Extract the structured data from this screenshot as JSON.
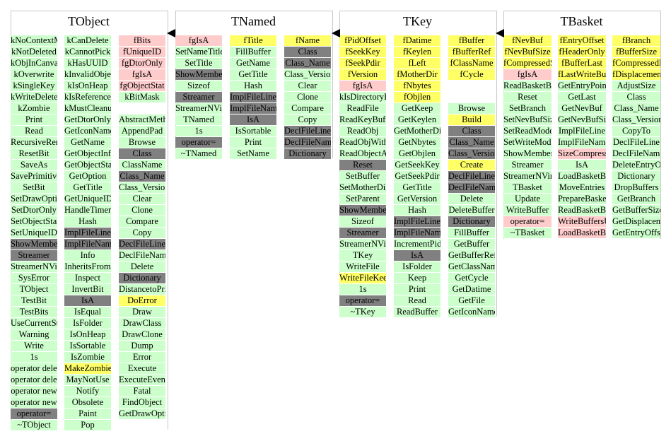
{
  "colors": {
    "g": "#ccffcc",
    "p": "#ffcccc",
    "y": "#ffff66",
    "d": "#808080"
  },
  "classes": [
    {
      "title": "TObject",
      "columns": [
        [
          [
            "kNoContextMenu",
            "g"
          ],
          [
            "kNotDeleted",
            "g"
          ],
          [
            "kObjInCanvas",
            "g"
          ],
          [
            "kOverwrite",
            "g"
          ],
          [
            "kSingleKey",
            "g"
          ],
          [
            "kWriteDelete",
            "g"
          ],
          [
            "kZombie",
            "g"
          ],
          [
            "Print",
            "g"
          ],
          [
            "Read",
            "g"
          ],
          [
            "RecursiveRemove",
            "g"
          ],
          [
            "ResetBit",
            "g"
          ],
          [
            "SaveAs",
            "g"
          ],
          [
            "SavePrimitive",
            "g"
          ],
          [
            "SetBit",
            "g"
          ],
          [
            "SetDrawOption",
            "g"
          ],
          [
            "SetDtorOnly",
            "g"
          ],
          [
            "SetObjectStat",
            "g"
          ],
          [
            "SetUniqueID",
            "g"
          ],
          [
            "ShowMembers",
            "d"
          ],
          [
            "Streamer",
            "d"
          ],
          [
            "StreamerNVirtual",
            "g"
          ],
          [
            "SysError",
            "g"
          ],
          [
            "TObject",
            "g"
          ],
          [
            "TestBit",
            "g"
          ],
          [
            "TestBits",
            "g"
          ],
          [
            "UseCurrentStyle",
            "g"
          ],
          [
            "Warning",
            "g"
          ],
          [
            "Write",
            "g"
          ],
          [
            "1s",
            "g"
          ],
          [
            "operator delete",
            "g"
          ],
          [
            "operator delete[]",
            "g"
          ],
          [
            "operator new",
            "g"
          ],
          [
            "operator new[]",
            "g"
          ],
          [
            "operator=",
            "d"
          ],
          [
            "~TObject",
            "g"
          ]
        ],
        [
          [
            "kCanDelete",
            "g"
          ],
          [
            "kCannotPick",
            "g"
          ],
          [
            "kHasUUID",
            "g"
          ],
          [
            "kInvalidObject",
            "g"
          ],
          [
            "kIsOnHeap",
            "g"
          ],
          [
            "kIsReferenced",
            "g"
          ],
          [
            "kMustCleanup",
            "g"
          ],
          [
            "GetDtorOnly",
            "g"
          ],
          [
            "GetIconName",
            "g"
          ],
          [
            "GetName",
            "g"
          ],
          [
            "GetObjectInfo",
            "g"
          ],
          [
            "GetObjectStat",
            "g"
          ],
          [
            "GetOption",
            "g"
          ],
          [
            "GetTitle",
            "g"
          ],
          [
            "GetUniqueID",
            "g"
          ],
          [
            "HandleTimer",
            "g"
          ],
          [
            "Hash",
            "g"
          ],
          [
            "ImplFileLine",
            "d"
          ],
          [
            "ImplFileName",
            "d"
          ],
          [
            "Info",
            "g"
          ],
          [
            "InheritsFrom",
            "g"
          ],
          [
            "Inspect",
            "g"
          ],
          [
            "InvertBit",
            "g"
          ],
          [
            "IsA",
            "d"
          ],
          [
            "IsEqual",
            "g"
          ],
          [
            "IsFolder",
            "g"
          ],
          [
            "IsOnHeap",
            "g"
          ],
          [
            "IsSortable",
            "g"
          ],
          [
            "IsZombie",
            "g"
          ],
          [
            "MakeZombie",
            "y"
          ],
          [
            "MayNotUse",
            "g"
          ],
          [
            "Notify",
            "g"
          ],
          [
            "Obsolete",
            "g"
          ],
          [
            "Paint",
            "g"
          ],
          [
            "Pop",
            "g"
          ]
        ],
        [
          [
            "fBits",
            "p"
          ],
          [
            "fUniqueID",
            "p"
          ],
          [
            "fgDtorOnly",
            "p"
          ],
          [
            "fgIsA",
            "p"
          ],
          [
            "fgObjectStat",
            "p"
          ],
          [
            "kBitMask",
            "g"
          ],
          [
            "",
            ""
          ],
          [
            "AbstractMethod",
            "g"
          ],
          [
            "AppendPad",
            "g"
          ],
          [
            "Browse",
            "g"
          ],
          [
            "Class",
            "d"
          ],
          [
            "ClassName",
            "g"
          ],
          [
            "Class_Name",
            "d"
          ],
          [
            "Class_Version",
            "g"
          ],
          [
            "Clear",
            "g"
          ],
          [
            "Clone",
            "g"
          ],
          [
            "Compare",
            "g"
          ],
          [
            "Copy",
            "g"
          ],
          [
            "DeclFileLine",
            "d"
          ],
          [
            "DeclFileName",
            "g"
          ],
          [
            "Delete",
            "g"
          ],
          [
            "Dictionary",
            "d"
          ],
          [
            "DistancetoPrimitive",
            "g"
          ],
          [
            "DoError",
            "y"
          ],
          [
            "Draw",
            "g"
          ],
          [
            "DrawClass",
            "g"
          ],
          [
            "DrawClone",
            "g"
          ],
          [
            "Dump",
            "g"
          ],
          [
            "Error",
            "g"
          ],
          [
            "Execute",
            "g"
          ],
          [
            "ExecuteEvent",
            "g"
          ],
          [
            "Fatal",
            "g"
          ],
          [
            "FindObject",
            "g"
          ],
          [
            "GetDrawOption",
            "g"
          ]
        ]
      ]
    },
    {
      "title": "TNamed",
      "columns": [
        [
          [
            "fgIsA",
            "p"
          ],
          [
            "SetNameTitle",
            "g"
          ],
          [
            "SetTitle",
            "g"
          ],
          [
            "ShowMembers",
            "d"
          ],
          [
            "Sizeof",
            "g"
          ],
          [
            "Streamer",
            "d"
          ],
          [
            "StreamerNVirtual",
            "g"
          ],
          [
            "TNamed",
            "g"
          ],
          [
            "1s",
            "g"
          ],
          [
            "operator=",
            "d"
          ],
          [
            "~TNamed",
            "g"
          ]
        ],
        [
          [
            "fTitle",
            "y"
          ],
          [
            "FillBuffer",
            "g"
          ],
          [
            "GetName",
            "g"
          ],
          [
            "GetTitle",
            "g"
          ],
          [
            "Hash",
            "g"
          ],
          [
            "ImplFileLine",
            "d"
          ],
          [
            "ImplFileName",
            "d"
          ],
          [
            "IsA",
            "d"
          ],
          [
            "IsSortable",
            "g"
          ],
          [
            "Print",
            "g"
          ],
          [
            "SetName",
            "g"
          ]
        ],
        [
          [
            "fName",
            "y"
          ],
          [
            "Class",
            "d"
          ],
          [
            "Class_Name",
            "d"
          ],
          [
            "Class_Version",
            "g"
          ],
          [
            "Clear",
            "g"
          ],
          [
            "Clone",
            "g"
          ],
          [
            "Compare",
            "g"
          ],
          [
            "Copy",
            "g"
          ],
          [
            "DeclFileLine",
            "d"
          ],
          [
            "DeclFileName",
            "d"
          ],
          [
            "Dictionary",
            "d"
          ]
        ]
      ]
    },
    {
      "title": "TKey",
      "columns": [
        [
          [
            "fPidOffset",
            "y"
          ],
          [
            "fSeekKey",
            "y"
          ],
          [
            "fSeekPdir",
            "y"
          ],
          [
            "fVersion",
            "y"
          ],
          [
            "fgIsA",
            "p"
          ],
          [
            "kIsDirectoryFile",
            "g"
          ],
          [
            "ReadFile",
            "g"
          ],
          [
            "ReadKeyBuffer",
            "g"
          ],
          [
            "ReadObj",
            "g"
          ],
          [
            "ReadObjWithBuffer",
            "g"
          ],
          [
            "ReadObjectAny",
            "g"
          ],
          [
            "Reset",
            "d"
          ],
          [
            "SetBuffer",
            "g"
          ],
          [
            "SetMotherDir",
            "g"
          ],
          [
            "SetParent",
            "g"
          ],
          [
            "ShowMembers",
            "d"
          ],
          [
            "Sizeof",
            "g"
          ],
          [
            "Streamer",
            "d"
          ],
          [
            "StreamerNVirtual",
            "g"
          ],
          [
            "TKey",
            "g"
          ],
          [
            "WriteFile",
            "g"
          ],
          [
            "WriteFileKeepBuffer",
            "y"
          ],
          [
            "1s",
            "g"
          ],
          [
            "operator=",
            "d"
          ],
          [
            "~TKey",
            "g"
          ]
        ],
        [
          [
            "fDatime",
            "y"
          ],
          [
            "fKeylen",
            "y"
          ],
          [
            "fLeft",
            "y"
          ],
          [
            "fMotherDir",
            "y"
          ],
          [
            "fNbytes",
            "y"
          ],
          [
            "fObjlen",
            "y"
          ],
          [
            "GetKeep",
            "g"
          ],
          [
            "GetKeylen",
            "g"
          ],
          [
            "GetMotherDir",
            "g"
          ],
          [
            "GetNbytes",
            "g"
          ],
          [
            "GetObjlen",
            "g"
          ],
          [
            "GetSeekKey",
            "g"
          ],
          [
            "GetSeekPdir",
            "g"
          ],
          [
            "GetTitle",
            "g"
          ],
          [
            "GetVersion",
            "g"
          ],
          [
            "Hash",
            "g"
          ],
          [
            "ImplFileLine",
            "d"
          ],
          [
            "ImplFileName",
            "d"
          ],
          [
            "IncrementPidOffset",
            "g"
          ],
          [
            "IsA",
            "d"
          ],
          [
            "IsFolder",
            "g"
          ],
          [
            "Keep",
            "g"
          ],
          [
            "Print",
            "g"
          ],
          [
            "Read",
            "g"
          ],
          [
            "ReadBuffer",
            "g"
          ]
        ],
        [
          [
            "fBuffer",
            "y"
          ],
          [
            "fBufferRef",
            "y"
          ],
          [
            "fClassName",
            "y"
          ],
          [
            "fCycle",
            "y"
          ],
          [
            "",
            ""
          ],
          [
            "",
            ""
          ],
          [
            "Browse",
            "g"
          ],
          [
            "Build",
            "y"
          ],
          [
            "Class",
            "d"
          ],
          [
            "Class_Name",
            "d"
          ],
          [
            "Class_Version",
            "d"
          ],
          [
            "Create",
            "y"
          ],
          [
            "DeclFileLine",
            "d"
          ],
          [
            "DeclFileName",
            "d"
          ],
          [
            "Delete",
            "g"
          ],
          [
            "DeleteBuffer",
            "g"
          ],
          [
            "Dictionary",
            "d"
          ],
          [
            "FillBuffer",
            "g"
          ],
          [
            "GetBuffer",
            "g"
          ],
          [
            "GetBufferRef",
            "g"
          ],
          [
            "GetClassName",
            "g"
          ],
          [
            "GetCycle",
            "g"
          ],
          [
            "GetDatime",
            "g"
          ],
          [
            "GetFile",
            "g"
          ],
          [
            "GetIconName",
            "g"
          ]
        ]
      ]
    },
    {
      "title": "TBasket",
      "columns": [
        [
          [
            "fNevBuf",
            "y"
          ],
          [
            "fNevBufSize",
            "y"
          ],
          [
            "fCompressedSize",
            "y"
          ],
          [
            "fgIsA",
            "p"
          ],
          [
            "ReadBasketBytes",
            "g"
          ],
          [
            "Reset",
            "g"
          ],
          [
            "SetBranch",
            "g"
          ],
          [
            "SetNevBufSize",
            "g"
          ],
          [
            "SetReadMode",
            "g"
          ],
          [
            "SetWriteMode",
            "g"
          ],
          [
            "ShowMembers",
            "g"
          ],
          [
            "Streamer",
            "g"
          ],
          [
            "StreamerNVirtual",
            "g"
          ],
          [
            "TBasket",
            "g"
          ],
          [
            "Update",
            "g"
          ],
          [
            "WriteBuffer",
            "g"
          ],
          [
            "operator=",
            "p"
          ],
          [
            "~TBasket",
            "g"
          ]
        ],
        [
          [
            "fEntryOffset",
            "y"
          ],
          [
            "fHeaderOnly",
            "y"
          ],
          [
            "fBufferLast",
            "y"
          ],
          [
            "fLastWriteBufferSize",
            "y"
          ],
          [
            "GetEntryPointer",
            "g"
          ],
          [
            "GetLast",
            "g"
          ],
          [
            "GetNevBuf",
            "g"
          ],
          [
            "GetNevBufSize",
            "g"
          ],
          [
            "ImplFileLine",
            "g"
          ],
          [
            "ImplFileName",
            "g"
          ],
          [
            "SizeCompressedBuffer",
            "p"
          ],
          [
            "IsA",
            "g"
          ],
          [
            "LoadBasketBuffers",
            "g"
          ],
          [
            "MoveEntries",
            "g"
          ],
          [
            "PrepareBasket",
            "g"
          ],
          [
            "ReadBasketBuffers",
            "g"
          ],
          [
            "WriteBuffersUncompressed",
            "p"
          ],
          [
            "LoadBasketBuffersUncompressed",
            "p"
          ]
        ],
        [
          [
            "fBranch",
            "y"
          ],
          [
            "fBufferSize",
            "y"
          ],
          [
            "fCompressedBufferRef",
            "y"
          ],
          [
            "fDisplacement",
            "y"
          ],
          [
            "AdjustSize",
            "g"
          ],
          [
            "Class",
            "g"
          ],
          [
            "Class_Name",
            "g"
          ],
          [
            "Class_Version",
            "g"
          ],
          [
            "CopyTo",
            "g"
          ],
          [
            "DeclFileLine",
            "g"
          ],
          [
            "DeclFileName",
            "g"
          ],
          [
            "DeleteEntryOffset",
            "g"
          ],
          [
            "Dictionary",
            "g"
          ],
          [
            "DropBuffers",
            "g"
          ],
          [
            "GetBranch",
            "g"
          ],
          [
            "GetBufferSize",
            "g"
          ],
          [
            "GetDisplacement",
            "g"
          ],
          [
            "GetEntryOffset",
            "g"
          ]
        ]
      ]
    }
  ]
}
